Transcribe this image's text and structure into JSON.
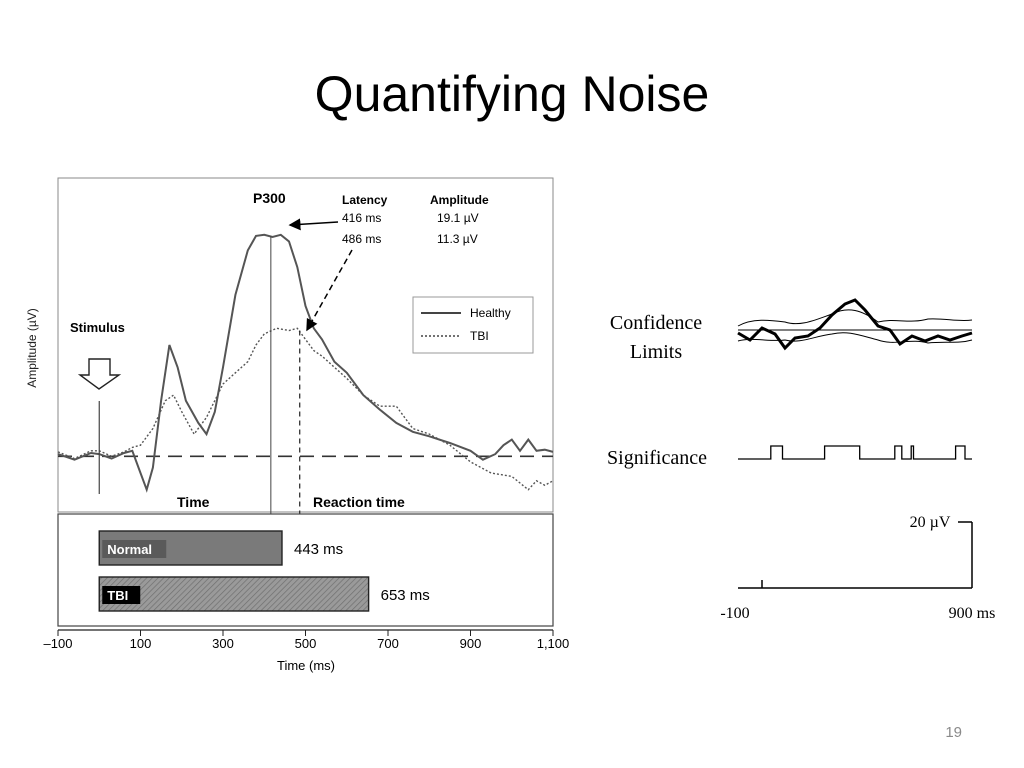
{
  "slide": {
    "title": "Quantifying Noise",
    "page_number": "19"
  },
  "chart_data": [
    {
      "type": "line",
      "title": "",
      "xlabel": "Time (ms)",
      "ylabel": "Amplitude (µV)",
      "xlim": [
        -100,
        1100
      ],
      "ylim": [
        -5,
        25
      ],
      "x_ticks": [
        "–100",
        "100",
        "300",
        "500",
        "700",
        "900",
        "1,100"
      ],
      "x_tick_values": [
        -100,
        100,
        300,
        500,
        700,
        900,
        1100
      ],
      "legend": {
        "placement": "right",
        "entries": [
          "Healthy",
          "TBI"
        ]
      },
      "baseline": 0,
      "series": [
        {
          "name": "Healthy",
          "style": "solid",
          "x": [
            -100,
            -60,
            -20,
            0,
            30,
            60,
            80,
            100,
            115,
            130,
            150,
            170,
            190,
            210,
            240,
            260,
            280,
            300,
            330,
            360,
            380,
            400,
            420,
            440,
            460,
            480,
            500,
            520,
            540,
            570,
            600,
            640,
            680,
            720,
            760,
            800,
            850,
            900,
            930,
            960,
            980,
            1000,
            1020,
            1040,
            1060,
            1080,
            1100
          ],
          "y": [
            0.2,
            -0.3,
            0.3,
            0.2,
            -0.2,
            0.3,
            0.5,
            -1.5,
            -3.0,
            -1.0,
            5.0,
            10.0,
            8.0,
            5.0,
            3.0,
            2.0,
            4.0,
            8.0,
            14.5,
            18.5,
            19.8,
            19.9,
            19.7,
            19.9,
            19.3,
            17.0,
            13.5,
            11.5,
            10.5,
            8.5,
            7.5,
            5.5,
            4.2,
            3.0,
            2.2,
            1.8,
            1.2,
            0.5,
            -0.3,
            0.2,
            1.0,
            1.5,
            0.5,
            1.5,
            0.5,
            0.6,
            0.4
          ]
        },
        {
          "name": "TBI",
          "style": "dotted",
          "x": [
            -100,
            -60,
            -20,
            0,
            30,
            60,
            80,
            100,
            130,
            160,
            180,
            200,
            230,
            260,
            300,
            330,
            360,
            380,
            400,
            430,
            460,
            480,
            500,
            520,
            540,
            570,
            600,
            640,
            680,
            720,
            760,
            800,
            850,
            900,
            950,
            1000,
            1040,
            1060,
            1080,
            1100
          ],
          "y": [
            0.4,
            -0.2,
            0.5,
            0.5,
            0.0,
            0.4,
            0.8,
            1.0,
            2.5,
            5.0,
            5.5,
            4.0,
            2.0,
            3.5,
            6.5,
            7.5,
            8.5,
            10.0,
            11.0,
            11.5,
            11.3,
            11.5,
            10.5,
            9.5,
            9.0,
            8.0,
            7.0,
            5.5,
            4.5,
            4.5,
            2.5,
            2.0,
            1.0,
            -0.5,
            -1.5,
            -1.8,
            -3.0,
            -2.2,
            -2.6,
            -2.2
          ]
        }
      ],
      "annotations": {
        "stimulus": "Stimulus",
        "peak_label": "P300",
        "latency_header": "Latency",
        "amplitude_header": "Amplitude",
        "healthy_latency": "416 ms",
        "healthy_amplitude": "19.1 µV",
        "tbi_latency": "486 ms",
        "tbi_amplitude": "11.3 µV",
        "time_label": "Time",
        "reaction_time_label": "Reaction time"
      },
      "reaction_time_bars": [
        {
          "label": "Normal",
          "start": 0,
          "end": 443,
          "value_label": "443 ms"
        },
        {
          "label": "TBI",
          "start": 0,
          "end": 653,
          "value_label": "653 ms"
        }
      ],
      "grid": false
    },
    {
      "type": "line",
      "title": "",
      "xlabel": "",
      "ylabel": "",
      "panels": [
        {
          "label": "Confidence Limits",
          "series": [
            "waveform",
            "upper-limit",
            "lower-limit"
          ]
        },
        {
          "label": "Significance",
          "pulse_segments_ms": [
            [
              40,
              90
            ],
            [
              270,
              420
            ],
            [
              570,
              600
            ],
            [
              640,
              650
            ],
            [
              830,
              870
            ]
          ]
        }
      ],
      "scale_bar": "20 µV",
      "x_tick_labels": [
        "-100",
        "900 ms"
      ],
      "xlim": [
        -100,
        900
      ],
      "grid": false
    }
  ]
}
